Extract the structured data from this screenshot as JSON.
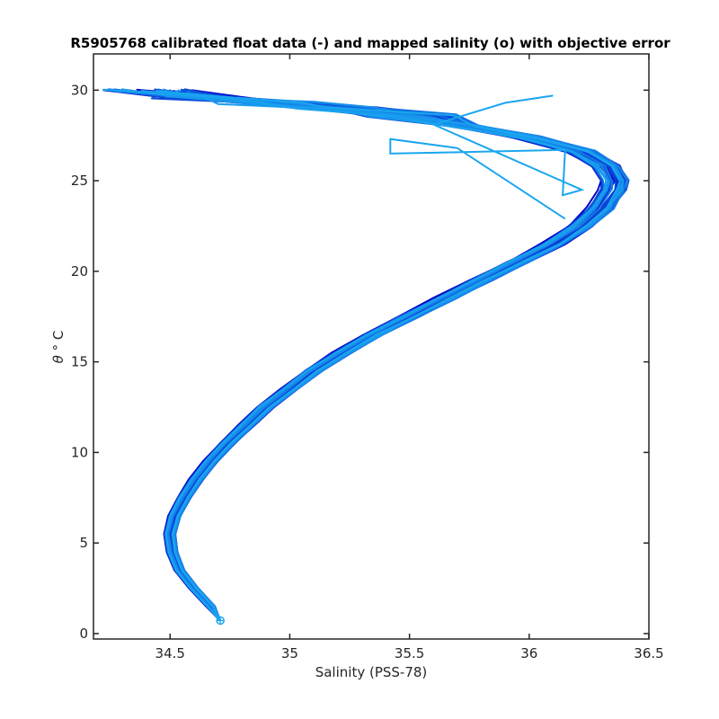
{
  "chart_data": {
    "type": "line",
    "title": "R5905768 calibrated float data (-) and mapped salinity (o) with objective error",
    "xlabel": "Salinity (PSS-78)",
    "ylabel_symbol": "θ",
    "ylabel_unit": "° C",
    "xlim": [
      34.18,
      36.5
    ],
    "ylim": [
      -0.3,
      32
    ],
    "xticks": [
      34.5,
      35,
      35.5,
      36,
      36.5
    ],
    "yticks": [
      0,
      5,
      10,
      15,
      20,
      25,
      30
    ],
    "xtick_labels": [
      "34.5",
      "35",
      "35.5",
      "36",
      "36.5"
    ],
    "ytick_labels": [
      "0",
      "5",
      "10",
      "15",
      "20",
      "25",
      "30"
    ],
    "grid": false,
    "legend": "none",
    "color_start": "#0000c8",
    "color_end": "#1aa6f0",
    "profile_count": 40,
    "base_profile": [
      [
        34.71,
        0.7
      ],
      [
        34.67,
        1.5
      ],
      [
        34.6,
        2.5
      ],
      [
        34.54,
        3.5
      ],
      [
        34.51,
        4.5
      ],
      [
        34.5,
        5.5
      ],
      [
        34.52,
        6.5
      ],
      [
        34.56,
        7.5
      ],
      [
        34.61,
        8.5
      ],
      [
        34.67,
        9.5
      ],
      [
        34.74,
        10.5
      ],
      [
        34.82,
        11.5
      ],
      [
        34.9,
        12.5
      ],
      [
        35.0,
        13.5
      ],
      [
        35.1,
        14.5
      ],
      [
        35.22,
        15.5
      ],
      [
        35.35,
        16.5
      ],
      [
        35.5,
        17.5
      ],
      [
        35.65,
        18.5
      ],
      [
        35.8,
        19.5
      ],
      [
        35.95,
        20.5
      ],
      [
        36.1,
        21.5
      ],
      [
        36.22,
        22.5
      ],
      [
        36.3,
        23.5
      ],
      [
        36.35,
        24.5
      ],
      [
        36.36,
        25.0
      ],
      [
        36.32,
        25.8
      ],
      [
        36.22,
        26.6
      ],
      [
        36.0,
        27.4
      ],
      [
        35.75,
        28.0
      ],
      [
        35.5,
        28.6
      ],
      [
        35.2,
        29.0
      ],
      [
        34.9,
        29.3
      ],
      [
        34.6,
        29.6
      ],
      [
        34.4,
        30.0
      ]
    ],
    "outlier_profile": [
      [
        36.15,
        22.9
      ],
      [
        35.7,
        26.8
      ],
      [
        35.42,
        27.3
      ],
      [
        35.42,
        26.5
      ],
      [
        36.15,
        26.7
      ],
      [
        36.14,
        24.2
      ],
      [
        36.22,
        24.5
      ],
      [
        35.6,
        28.1
      ],
      [
        35.65,
        28.3
      ],
      [
        35.9,
        29.3
      ],
      [
        36.1,
        29.7
      ]
    ],
    "mapped_point": {
      "x": 34.71,
      "y": 0.72
    }
  }
}
